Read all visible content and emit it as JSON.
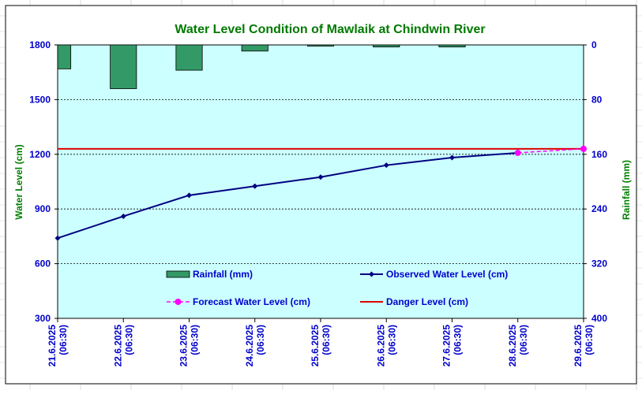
{
  "chart_data": {
    "type": "line",
    "title": "Water Level Condition of Mawlaik at Chindwin River",
    "ylabel": "Water Level (cm)",
    "y2label": "Rainfall (mm)",
    "ylim": [
      300,
      1800
    ],
    "y2lim": [
      0,
      400
    ],
    "y2_inverted": true,
    "yticks": [
      "1800",
      "1500",
      "1200",
      "900",
      "600",
      "300"
    ],
    "y2ticks": [
      "0",
      "80",
      "160",
      "240",
      "320",
      "400"
    ],
    "grid": true,
    "categories": [
      {
        "date": "21.6.2025",
        "time": "(06:30)"
      },
      {
        "date": "22.6.2025",
        "time": "(06:30)"
      },
      {
        "date": "23.6.2025",
        "time": "(06:30)"
      },
      {
        "date": "24.6.2025",
        "time": "(06:30)"
      },
      {
        "date": "25.6.2025",
        "time": "(06:30)"
      },
      {
        "date": "26.6.2025",
        "time": "(06:30)"
      },
      {
        "date": "27.6.2025",
        "time": "(06:30)"
      },
      {
        "date": "28.6.2025",
        "time": "(06:30)"
      },
      {
        "date": "29.6.2025",
        "time": "(06:30)"
      }
    ],
    "series": [
      {
        "name": "Rainfall (mm)",
        "kind": "bar",
        "axis": "right",
        "color": "#339966",
        "values": [
          35,
          64,
          37,
          9,
          1,
          3,
          3,
          null,
          null
        ]
      },
      {
        "name": "Observed Water Level (cm)",
        "kind": "line",
        "axis": "left",
        "color": "#000080",
        "values": [
          740,
          860,
          975,
          1025,
          1075,
          1140,
          1182,
          1208,
          null
        ]
      },
      {
        "name": "Forecast Water Level (cm)",
        "kind": "dashed-line",
        "axis": "left",
        "color": "#ff00ff",
        "values": [
          null,
          null,
          null,
          null,
          null,
          null,
          null,
          1208,
          1230
        ]
      },
      {
        "name": "Danger Level (cm)",
        "kind": "reference-line",
        "axis": "left",
        "color": "#e00000",
        "value": 1230
      }
    ],
    "legend": [
      {
        "label": "Rainfall (mm)",
        "symbol": "bar",
        "color": "#339966"
      },
      {
        "label": "Observed Water Level (cm)",
        "symbol": "line-diamond",
        "color": "#000080"
      },
      {
        "label": "Forecast Water Level (cm)",
        "symbol": "dashed-circle",
        "color": "#ff00ff"
      },
      {
        "label": "Danger Level (cm)",
        "symbol": "line",
        "color": "#e00000"
      }
    ],
    "colors": {
      "plot_background": "#ccffff",
      "title": "#007a00",
      "axis_label": "#008000",
      "tick": "#0000cc",
      "legend_text": "#0000cc"
    }
  }
}
